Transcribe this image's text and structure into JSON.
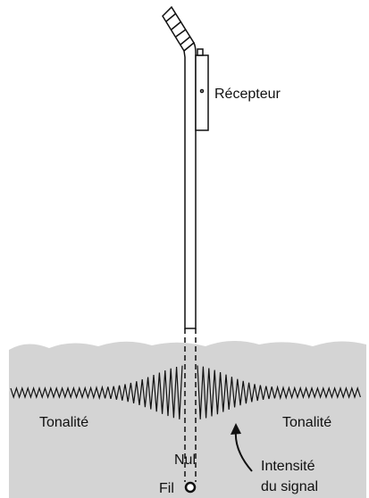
{
  "labels": {
    "receiver": "Récepteur",
    "tone_left": "Tonalité",
    "tone_right": "Tonalité",
    "null": "Nul",
    "signal_line1": "Intensité",
    "signal_line2": "du signal",
    "wire": "Fil"
  }
}
